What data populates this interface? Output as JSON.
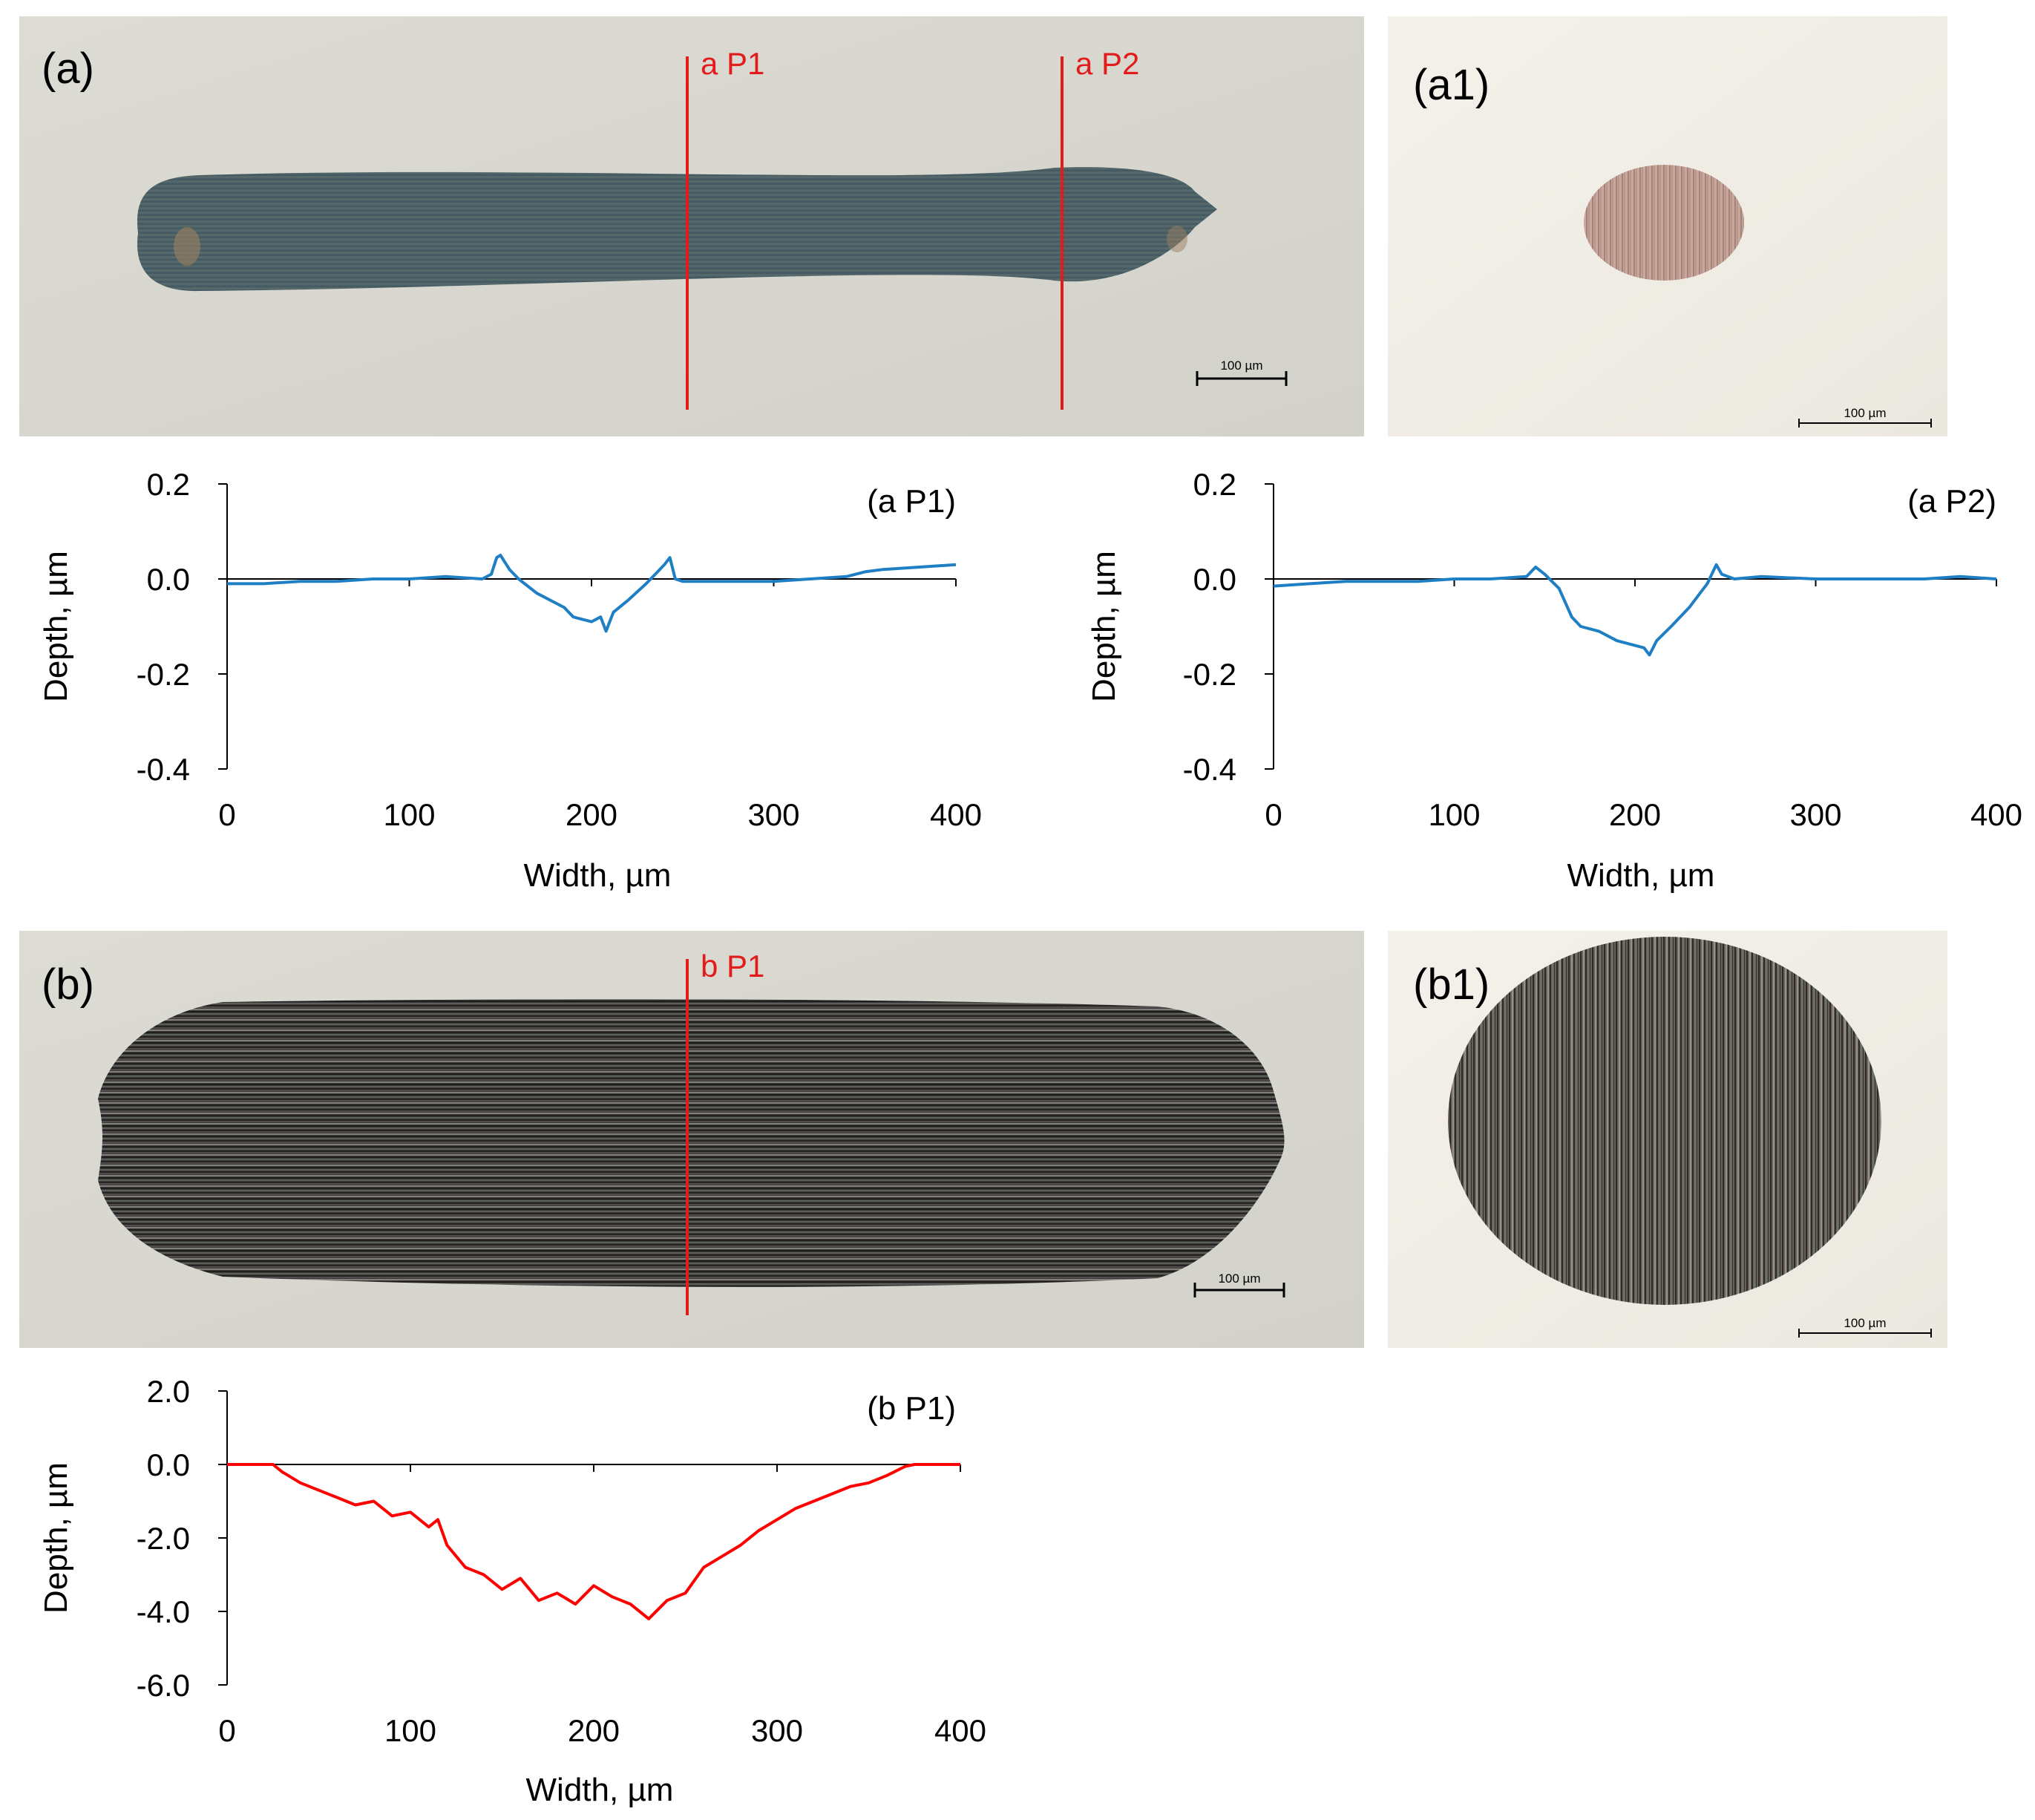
{
  "micrographs": {
    "a": {
      "label": "(a)",
      "lines": [
        "a P1",
        "a P2"
      ],
      "scale_bar": "100 µm"
    },
    "a1": {
      "label": "(a1)",
      "scale_bar": "100 µm"
    },
    "b": {
      "label": "(b)",
      "lines": [
        "b P1"
      ],
      "scale_bar": "100 µm"
    },
    "b1": {
      "label": "(b1)",
      "scale_bar": "100 µm"
    }
  },
  "colors": {
    "profile_a": "#1f7fc4",
    "profile_b": "#ff0000",
    "section_line": "#e31b1b"
  },
  "chart_data": [
    {
      "id": "aP1",
      "type": "line",
      "title": "(a P1)",
      "xlabel": "Width, µm",
      "ylabel": "Depth, µm",
      "xlim": [
        0,
        400
      ],
      "ylim": [
        -0.4,
        0.2
      ],
      "xticks": [
        "0",
        "100",
        "200",
        "300",
        "400"
      ],
      "yticks": [
        "0.2",
        "0.0",
        "-0.2",
        "-0.4"
      ],
      "grid": false,
      "series": [
        {
          "color": "#1f7fc4",
          "points": [
            [
              0,
              -0.01
            ],
            [
              20,
              -0.01
            ],
            [
              40,
              -0.005
            ],
            [
              60,
              -0.005
            ],
            [
              80,
              0.0
            ],
            [
              100,
              0.0
            ],
            [
              120,
              0.005
            ],
            [
              140,
              0.0
            ],
            [
              145,
              0.01
            ],
            [
              148,
              0.045
            ],
            [
              150,
              0.05
            ],
            [
              155,
              0.02
            ],
            [
              160,
              0.0
            ],
            [
              170,
              -0.03
            ],
            [
              180,
              -0.05
            ],
            [
              185,
              -0.06
            ],
            [
              190,
              -0.08
            ],
            [
              195,
              -0.085
            ],
            [
              200,
              -0.09
            ],
            [
              205,
              -0.08
            ],
            [
              208,
              -0.11
            ],
            [
              212,
              -0.07
            ],
            [
              220,
              -0.045
            ],
            [
              230,
              -0.01
            ],
            [
              240,
              0.03
            ],
            [
              243,
              0.045
            ],
            [
              246,
              0.0
            ],
            [
              250,
              -0.005
            ],
            [
              260,
              -0.005
            ],
            [
              280,
              -0.005
            ],
            [
              300,
              -0.005
            ],
            [
              320,
              0.0
            ],
            [
              340,
              0.005
            ],
            [
              350,
              0.015
            ],
            [
              360,
              0.02
            ],
            [
              380,
              0.025
            ],
            [
              400,
              0.03
            ]
          ]
        }
      ]
    },
    {
      "id": "aP2",
      "type": "line",
      "title": "(a P2)",
      "xlabel": "Width, µm",
      "ylabel": "Depth, µm",
      "xlim": [
        0,
        400
      ],
      "ylim": [
        -0.4,
        0.2
      ],
      "xticks": [
        "0",
        "100",
        "200",
        "300",
        "400"
      ],
      "yticks": [
        "0.2",
        "0.0",
        "-0.2",
        "-0.4"
      ],
      "grid": false,
      "series": [
        {
          "color": "#1f7fc4",
          "points": [
            [
              0,
              -0.015
            ],
            [
              20,
              -0.01
            ],
            [
              40,
              -0.005
            ],
            [
              60,
              -0.005
            ],
            [
              80,
              -0.005
            ],
            [
              100,
              0.0
            ],
            [
              120,
              0.0
            ],
            [
              140,
              0.005
            ],
            [
              145,
              0.025
            ],
            [
              150,
              0.01
            ],
            [
              158,
              -0.02
            ],
            [
              165,
              -0.08
            ],
            [
              170,
              -0.1
            ],
            [
              180,
              -0.11
            ],
            [
              190,
              -0.13
            ],
            [
              200,
              -0.14
            ],
            [
              205,
              -0.145
            ],
            [
              208,
              -0.16
            ],
            [
              212,
              -0.13
            ],
            [
              220,
              -0.1
            ],
            [
              230,
              -0.06
            ],
            [
              240,
              -0.01
            ],
            [
              245,
              0.03
            ],
            [
              248,
              0.01
            ],
            [
              255,
              0.0
            ],
            [
              270,
              0.005
            ],
            [
              300,
              0.0
            ],
            [
              330,
              0.0
            ],
            [
              360,
              0.0
            ],
            [
              380,
              0.005
            ],
            [
              400,
              0.0
            ]
          ]
        }
      ]
    },
    {
      "id": "bP1",
      "type": "line",
      "title": "(b P1)",
      "xlabel": "Width, µm",
      "ylabel": "Depth, µm",
      "xlim": [
        0,
        400
      ],
      "ylim": [
        -6.0,
        2.0
      ],
      "xticks": [
        "0",
        "100",
        "200",
        "300",
        "400"
      ],
      "yticks": [
        "2.0",
        "0.0",
        "-2.0",
        "-4.0",
        "-6.0"
      ],
      "grid": false,
      "series": [
        {
          "color": "#ff0000",
          "points": [
            [
              0,
              0.0
            ],
            [
              25,
              0.0
            ],
            [
              30,
              -0.2
            ],
            [
              40,
              -0.5
            ],
            [
              50,
              -0.7
            ],
            [
              60,
              -0.9
            ],
            [
              70,
              -1.1
            ],
            [
              80,
              -1.0
            ],
            [
              90,
              -1.4
            ],
            [
              100,
              -1.3
            ],
            [
              110,
              -1.7
            ],
            [
              115,
              -1.5
            ],
            [
              120,
              -2.2
            ],
            [
              130,
              -2.8
            ],
            [
              140,
              -3.0
            ],
            [
              150,
              -3.4
            ],
            [
              160,
              -3.1
            ],
            [
              170,
              -3.7
            ],
            [
              180,
              -3.5
            ],
            [
              190,
              -3.8
            ],
            [
              200,
              -3.3
            ],
            [
              210,
              -3.6
            ],
            [
              220,
              -3.8
            ],
            [
              230,
              -4.2
            ],
            [
              240,
              -3.7
            ],
            [
              250,
              -3.5
            ],
            [
              260,
              -2.8
            ],
            [
              270,
              -2.5
            ],
            [
              280,
              -2.2
            ],
            [
              290,
              -1.8
            ],
            [
              300,
              -1.5
            ],
            [
              310,
              -1.2
            ],
            [
              320,
              -1.0
            ],
            [
              330,
              -0.8
            ],
            [
              340,
              -0.6
            ],
            [
              350,
              -0.5
            ],
            [
              360,
              -0.3
            ],
            [
              370,
              -0.05
            ],
            [
              375,
              0.0
            ],
            [
              400,
              0.0
            ]
          ]
        }
      ]
    }
  ]
}
